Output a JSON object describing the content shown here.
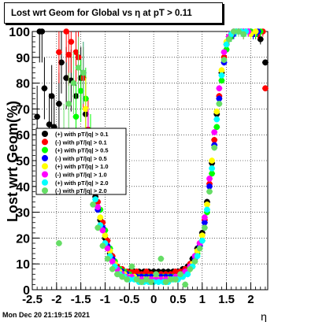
{
  "chart_data": {
    "type": "scatter",
    "title": "Lost wrt Geom for Global vs  η at pT > 0.11",
    "xlabel": "η",
    "ylabel": "Lost wrt Geom(%)",
    "xlim": [
      -2.5,
      2.35
    ],
    "ylim": [
      0,
      100
    ],
    "x_ticks": [
      -2.5,
      -2,
      -1.5,
      -1,
      -0.5,
      0,
      0.5,
      1,
      1.5,
      2
    ],
    "x_tick_labels": [
      "-2.5",
      "-2",
      "-1.5",
      "-1",
      "-0.5",
      "0",
      "0.5",
      "1",
      "1.5",
      "2"
    ],
    "y_ticks": [
      0,
      10,
      20,
      30,
      40,
      50,
      60,
      70,
      80,
      90,
      100
    ],
    "y_tick_labels": [
      "0",
      "10",
      "20",
      "30",
      "40",
      "50",
      "60",
      "70",
      "80",
      "90",
      "100"
    ],
    "grid": true,
    "legend_position": "middle-left",
    "series": [
      {
        "name": "(+) with pT/|q| > 0.1",
        "color": "#000000",
        "points": [
          [
            -2.4,
            67
          ],
          [
            -2.35,
            100
          ],
          [
            -2.3,
            100
          ],
          [
            -2.25,
            78
          ],
          [
            -2.15,
            64
          ],
          [
            -2.1,
            75
          ],
          [
            -2.05,
            63
          ],
          [
            -1.95,
            72
          ],
          [
            -1.9,
            88
          ],
          [
            -1.8,
            82
          ],
          [
            -1.7,
            81
          ],
          [
            -1.6,
            75
          ],
          [
            -1.5,
            82
          ],
          [
            -1.4,
            68
          ],
          [
            -1.3,
            45
          ],
          [
            -1.2,
            36
          ],
          [
            -1.1,
            27
          ],
          [
            -1.0,
            20
          ],
          [
            -0.9,
            14
          ],
          [
            -0.8,
            10
          ],
          [
            -0.7,
            8
          ],
          [
            -0.6,
            7
          ],
          [
            -0.5,
            7
          ],
          [
            -0.4,
            7
          ],
          [
            -0.3,
            7
          ],
          [
            -0.2,
            7
          ],
          [
            -0.1,
            7
          ],
          [
            0.0,
            7
          ],
          [
            0.1,
            7
          ],
          [
            0.2,
            7
          ],
          [
            0.3,
            7
          ],
          [
            0.4,
            7
          ],
          [
            0.5,
            7
          ],
          [
            0.6,
            8
          ],
          [
            0.7,
            9
          ],
          [
            0.8,
            12
          ],
          [
            0.9,
            16
          ],
          [
            1.0,
            22
          ],
          [
            1.1,
            34
          ],
          [
            1.2,
            49
          ],
          [
            1.3,
            68
          ],
          [
            1.4,
            84
          ],
          [
            1.5,
            95
          ],
          [
            1.6,
            99
          ],
          [
            1.7,
            100
          ],
          [
            1.8,
            100
          ],
          [
            1.9,
            100
          ],
          [
            2.0,
            100
          ],
          [
            2.1,
            99
          ],
          [
            2.2,
            97
          ],
          [
            2.3,
            88
          ]
        ]
      },
      {
        "name": "(-) with pT/|q| > 0.1",
        "color": "#ff0000",
        "points": [
          [
            -1.95,
            92
          ],
          [
            -1.8,
            100
          ],
          [
            -1.75,
            91
          ],
          [
            -1.7,
            96
          ],
          [
            -1.6,
            92
          ],
          [
            -1.55,
            90
          ],
          [
            -1.45,
            82
          ],
          [
            -1.35,
            62
          ],
          [
            -1.25,
            44
          ],
          [
            -1.15,
            34
          ],
          [
            -1.05,
            26
          ],
          [
            -0.95,
            19
          ],
          [
            -0.85,
            13
          ],
          [
            -0.75,
            9
          ],
          [
            -0.65,
            8
          ],
          [
            -0.55,
            7
          ],
          [
            -0.45,
            7
          ],
          [
            -0.35,
            7
          ],
          [
            -0.25,
            6
          ],
          [
            -0.15,
            7
          ],
          [
            -0.05,
            6
          ],
          [
            0.05,
            6
          ],
          [
            0.15,
            6
          ],
          [
            0.25,
            6
          ],
          [
            0.35,
            6
          ],
          [
            0.45,
            7
          ],
          [
            0.55,
            7
          ],
          [
            0.65,
            8
          ],
          [
            0.75,
            10
          ],
          [
            0.85,
            13
          ],
          [
            0.95,
            18
          ],
          [
            1.05,
            27
          ],
          [
            1.15,
            41
          ],
          [
            1.25,
            58
          ],
          [
            1.35,
            75
          ],
          [
            1.45,
            90
          ],
          [
            1.55,
            98
          ],
          [
            1.65,
            100
          ],
          [
            1.75,
            100
          ],
          [
            1.85,
            99
          ],
          [
            1.95,
            100
          ],
          [
            2.05,
            99
          ],
          [
            2.15,
            99
          ],
          [
            2.25,
            100
          ],
          [
            2.3,
            78
          ]
        ]
      },
      {
        "name": "(+) with pT/|q| > 0.5",
        "color": "#00ff00",
        "points": [
          [
            -1.6,
            67
          ],
          [
            -1.5,
            77
          ],
          [
            -1.4,
            74
          ],
          [
            -1.3,
            56
          ],
          [
            -1.2,
            40
          ],
          [
            -1.1,
            31
          ],
          [
            -1.0,
            23
          ],
          [
            -0.9,
            16
          ],
          [
            -0.8,
            11
          ],
          [
            -0.7,
            8
          ],
          [
            -0.6,
            7
          ],
          [
            -0.5,
            6
          ],
          [
            -0.4,
            5
          ],
          [
            -0.3,
            5
          ],
          [
            -0.2,
            5
          ],
          [
            -0.1,
            5
          ],
          [
            0.0,
            5
          ],
          [
            0.1,
            5
          ],
          [
            0.2,
            5
          ],
          [
            0.3,
            5
          ],
          [
            0.4,
            5
          ],
          [
            0.5,
            5
          ],
          [
            0.6,
            6
          ],
          [
            0.7,
            7
          ],
          [
            0.8,
            9
          ],
          [
            0.9,
            14
          ],
          [
            1.0,
            19
          ],
          [
            1.1,
            30
          ],
          [
            1.2,
            45
          ],
          [
            1.3,
            63
          ],
          [
            1.4,
            81
          ],
          [
            1.5,
            93
          ],
          [
            1.6,
            98
          ],
          [
            1.7,
            100
          ],
          [
            1.8,
            100
          ],
          [
            1.9,
            100
          ],
          [
            2.0,
            100
          ],
          [
            2.1,
            99
          ],
          [
            2.2,
            100
          ]
        ]
      },
      {
        "name": "(-) with pT/|q| > 0.5",
        "color": "#0000ff",
        "points": [
          [
            -1.45,
            84
          ],
          [
            -1.35,
            55
          ],
          [
            -1.25,
            40
          ],
          [
            -1.15,
            31
          ],
          [
            -1.05,
            24
          ],
          [
            -0.95,
            17
          ],
          [
            -0.85,
            12
          ],
          [
            -0.75,
            8
          ],
          [
            -0.65,
            7
          ],
          [
            -0.55,
            6
          ],
          [
            -0.45,
            5
          ],
          [
            -0.35,
            5
          ],
          [
            -0.25,
            5
          ],
          [
            -0.15,
            5
          ],
          [
            -0.05,
            5
          ],
          [
            0.05,
            5
          ],
          [
            0.15,
            5
          ],
          [
            0.25,
            5
          ],
          [
            0.35,
            5
          ],
          [
            0.45,
            5
          ],
          [
            0.55,
            6
          ],
          [
            0.65,
            7
          ],
          [
            0.75,
            9
          ],
          [
            0.85,
            12
          ],
          [
            0.95,
            17
          ],
          [
            1.05,
            26
          ],
          [
            1.15,
            40
          ],
          [
            1.25,
            56
          ],
          [
            1.35,
            74
          ],
          [
            1.45,
            88
          ],
          [
            1.55,
            97
          ],
          [
            1.65,
            99
          ],
          [
            1.75,
            100
          ],
          [
            1.85,
            100
          ],
          [
            1.95,
            100
          ],
          [
            2.05,
            99
          ],
          [
            2.15,
            100
          ]
        ]
      },
      {
        "name": "(+) with pT/|q| > 1.0",
        "color": "#ffff00",
        "points": [
          [
            -1.4,
            70
          ],
          [
            -1.3,
            52
          ],
          [
            -1.2,
            38
          ],
          [
            -1.1,
            28
          ],
          [
            -1.0,
            21
          ],
          [
            -0.9,
            15
          ],
          [
            -0.8,
            10
          ],
          [
            -0.7,
            7
          ],
          [
            -0.6,
            6
          ],
          [
            -0.5,
            5
          ],
          [
            -0.4,
            5
          ],
          [
            -0.3,
            4
          ],
          [
            -0.2,
            4
          ],
          [
            -0.1,
            4
          ],
          [
            0.0,
            4
          ],
          [
            0.1,
            4
          ],
          [
            0.2,
            4
          ],
          [
            0.3,
            4
          ],
          [
            0.4,
            4
          ],
          [
            0.5,
            5
          ],
          [
            0.6,
            5
          ],
          [
            0.7,
            7
          ],
          [
            0.8,
            10
          ],
          [
            0.9,
            15
          ],
          [
            1.0,
            21
          ],
          [
            1.1,
            33
          ],
          [
            1.2,
            50
          ],
          [
            1.3,
            69
          ],
          [
            1.4,
            85
          ],
          [
            1.5,
            96
          ],
          [
            1.6,
            99
          ],
          [
            1.7,
            100
          ],
          [
            1.8,
            100
          ],
          [
            1.9,
            100
          ],
          [
            2.0,
            99
          ],
          [
            2.1,
            100
          ]
        ]
      },
      {
        "name": "(-) with pT/|q| > 1.0",
        "color": "#ff00ff",
        "points": [
          [
            -1.35,
            58
          ],
          [
            -1.25,
            42
          ],
          [
            -1.15,
            32
          ],
          [
            -1.05,
            23
          ],
          [
            -0.95,
            16
          ],
          [
            -0.85,
            11
          ],
          [
            -0.75,
            8
          ],
          [
            -0.65,
            6
          ],
          [
            -0.55,
            5
          ],
          [
            -0.45,
            5
          ],
          [
            -0.35,
            4
          ],
          [
            -0.25,
            4
          ],
          [
            -0.15,
            4
          ],
          [
            -0.05,
            4
          ],
          [
            0.05,
            4
          ],
          [
            0.15,
            4
          ],
          [
            0.25,
            4
          ],
          [
            0.35,
            4
          ],
          [
            0.45,
            5
          ],
          [
            0.55,
            5
          ],
          [
            0.65,
            7
          ],
          [
            0.75,
            9
          ],
          [
            0.85,
            13
          ],
          [
            0.95,
            18
          ],
          [
            1.05,
            28
          ],
          [
            1.15,
            43
          ],
          [
            1.25,
            61
          ],
          [
            1.35,
            78
          ],
          [
            1.45,
            92
          ],
          [
            1.55,
            98
          ],
          [
            1.65,
            100
          ],
          [
            1.75,
            100
          ],
          [
            1.85,
            100
          ],
          [
            1.95,
            100
          ]
        ]
      },
      {
        "name": "(+) with pT/|q| > 2.0",
        "color": "#00ffff",
        "points": [
          [
            -1.3,
            50
          ],
          [
            -1.2,
            35
          ],
          [
            -1.1,
            25
          ],
          [
            -1.0,
            18
          ],
          [
            -0.9,
            13
          ],
          [
            -0.8,
            9
          ],
          [
            -0.7,
            6
          ],
          [
            -0.6,
            5
          ],
          [
            -0.5,
            4
          ],
          [
            -0.4,
            4
          ],
          [
            -0.3,
            3
          ],
          [
            -0.2,
            3
          ],
          [
            -0.1,
            3
          ],
          [
            0.0,
            3
          ],
          [
            0.1,
            3
          ],
          [
            0.2,
            3
          ],
          [
            0.3,
            3
          ],
          [
            0.4,
            4
          ],
          [
            0.5,
            4
          ],
          [
            0.6,
            5
          ],
          [
            0.7,
            6
          ],
          [
            0.8,
            9
          ],
          [
            0.9,
            13
          ],
          [
            1.0,
            19
          ],
          [
            1.1,
            31
          ],
          [
            1.2,
            47
          ],
          [
            1.3,
            66
          ],
          [
            1.4,
            83
          ],
          [
            1.5,
            95
          ],
          [
            1.6,
            99
          ],
          [
            1.7,
            100
          ],
          [
            1.8,
            100
          ],
          [
            1.9,
            100
          ]
        ]
      },
      {
        "name": "(-) with pT/|q| > 2.0",
        "color": "#66dd66",
        "points": [
          [
            -1.95,
            18
          ],
          [
            -1.85,
            60
          ],
          [
            -1.75,
            72
          ],
          [
            -1.65,
            80
          ],
          [
            -1.55,
            86
          ],
          [
            -1.45,
            84
          ],
          [
            -1.35,
            48
          ],
          [
            -1.25,
            33
          ],
          [
            -1.15,
            24
          ],
          [
            -1.05,
            17
          ],
          [
            -0.95,
            12
          ],
          [
            -0.85,
            8
          ],
          [
            -0.75,
            6
          ],
          [
            -0.65,
            5
          ],
          [
            -0.55,
            4
          ],
          [
            -0.45,
            9
          ],
          [
            -0.35,
            4
          ],
          [
            -0.25,
            3
          ],
          [
            -0.15,
            4
          ],
          [
            -0.05,
            3
          ],
          [
            0.05,
            6
          ],
          [
            0.15,
            12
          ],
          [
            0.25,
            3
          ],
          [
            0.35,
            4
          ],
          [
            0.45,
            4
          ],
          [
            0.55,
            6
          ],
          [
            0.65,
            2
          ],
          [
            0.75,
            8
          ],
          [
            0.85,
            11
          ],
          [
            0.95,
            16
          ],
          [
            1.05,
            24
          ],
          [
            1.15,
            38
          ],
          [
            1.25,
            55
          ],
          [
            1.35,
            72
          ],
          [
            1.45,
            89
          ],
          [
            1.55,
            97
          ],
          [
            1.65,
            100
          ],
          [
            1.75,
            100
          ],
          [
            1.85,
            99
          ]
        ]
      }
    ]
  },
  "footer": "Mon Dec 20 21:19:15 2021"
}
